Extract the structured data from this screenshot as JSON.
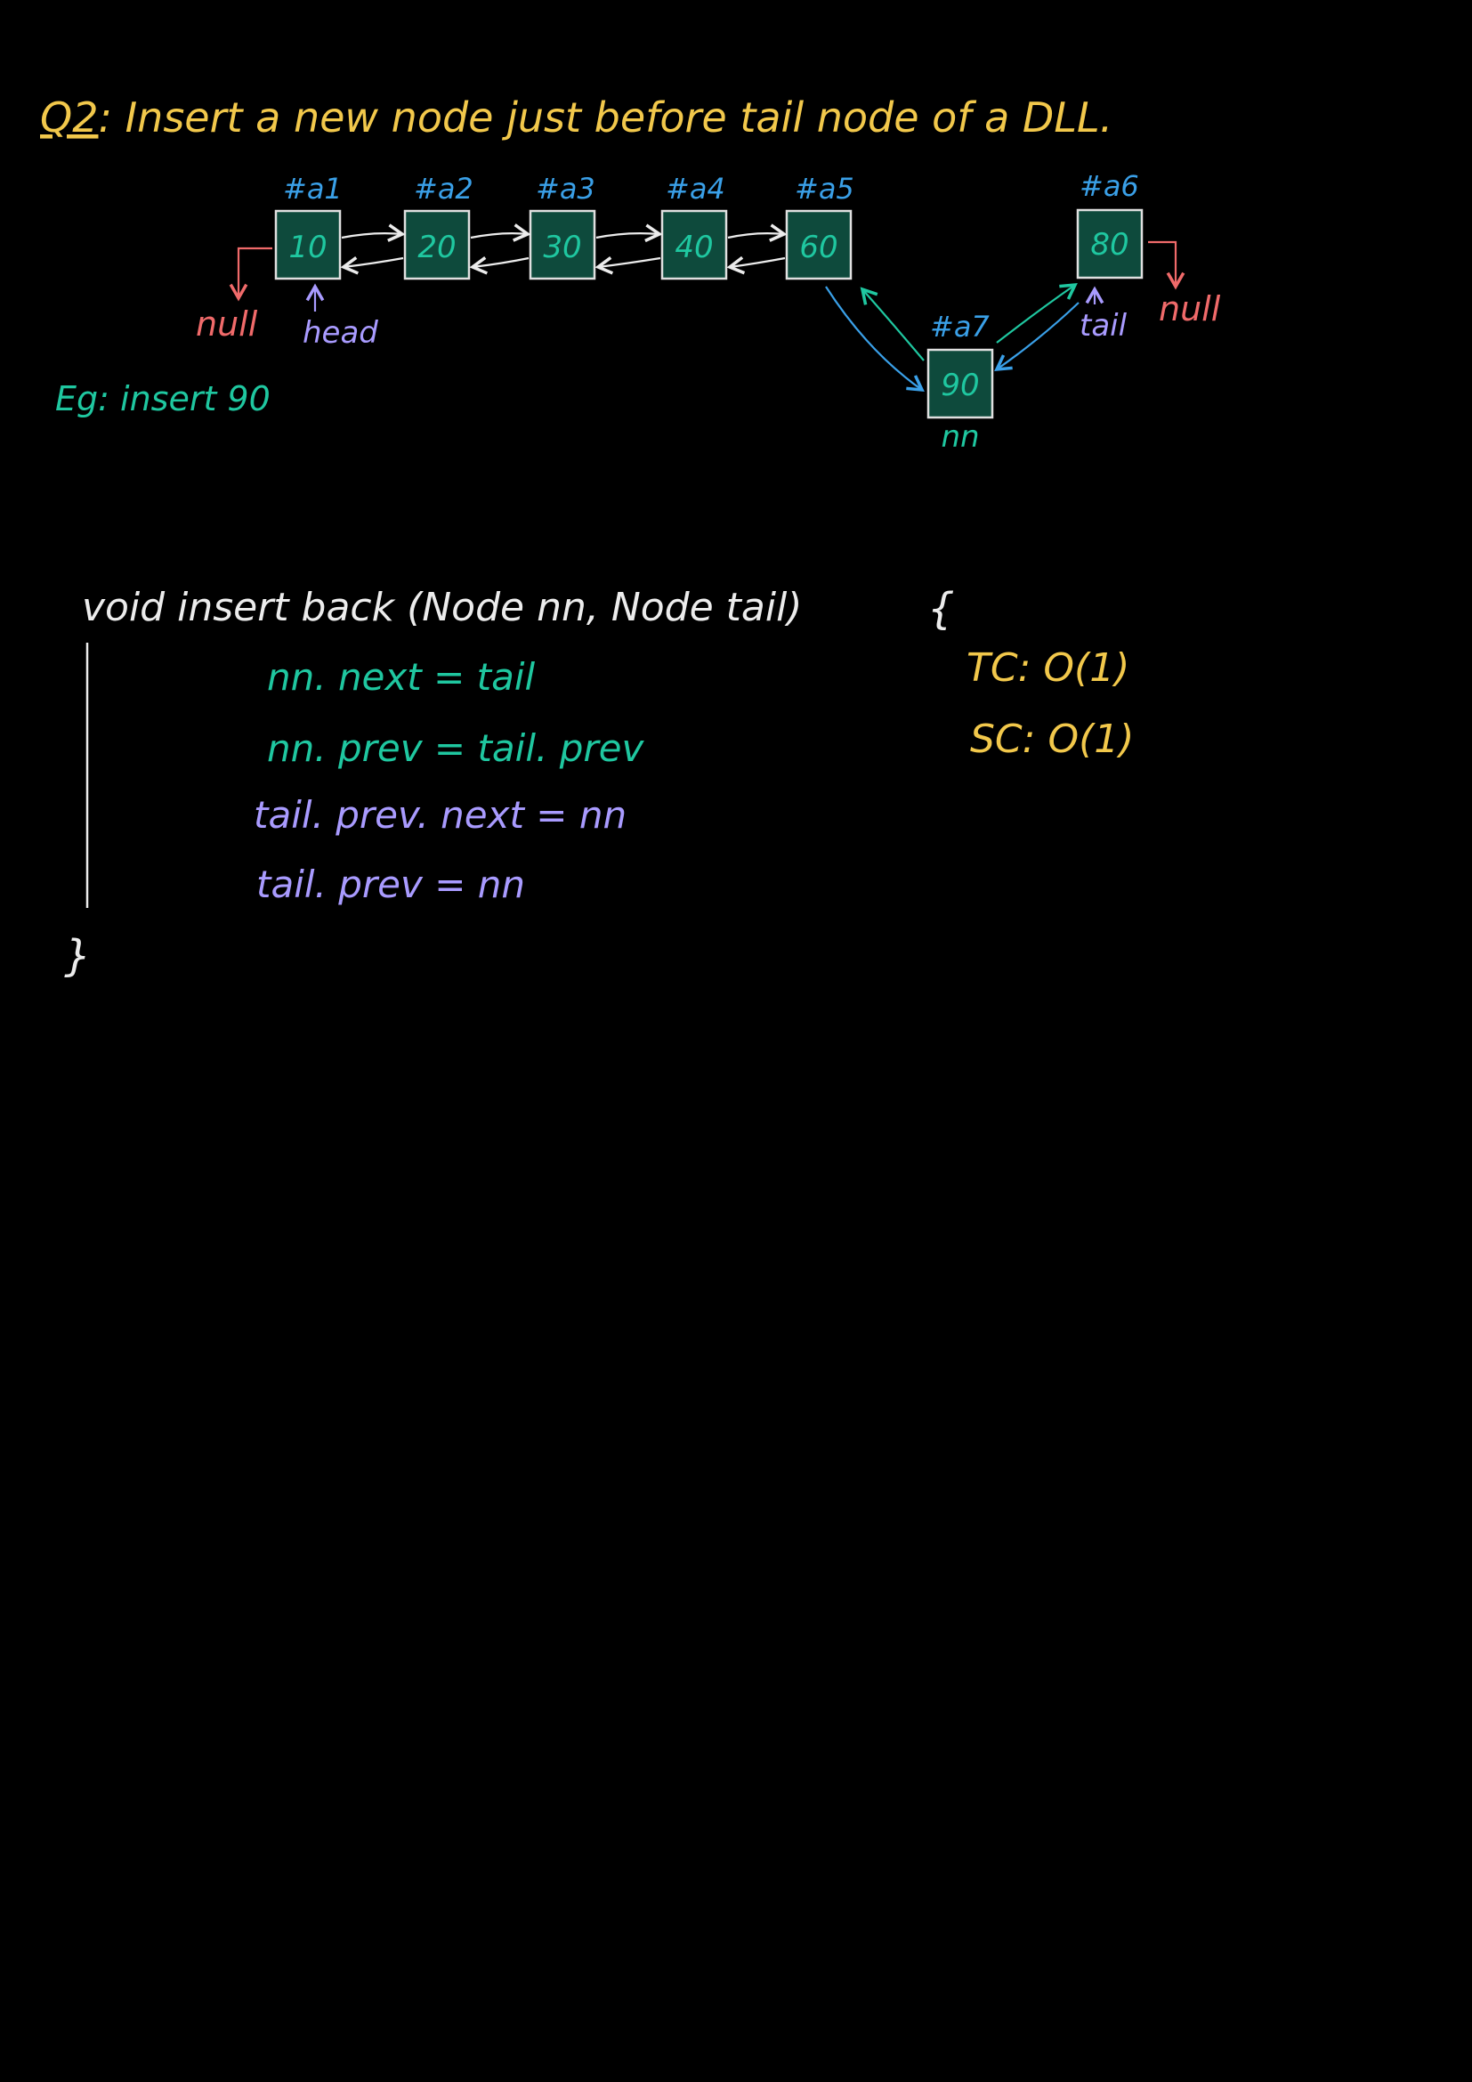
{
  "title": {
    "prefix": "Q2",
    "text": ": Insert a new node just before tail node of a DLL."
  },
  "example": "Eg: insert 90",
  "nodes": [
    {
      "addr": "#a1",
      "value": "10"
    },
    {
      "addr": "#a2",
      "value": "20"
    },
    {
      "addr": "#a3",
      "value": "30"
    },
    {
      "addr": "#a4",
      "value": "40"
    },
    {
      "addr": "#a5",
      "value": "60"
    },
    {
      "addr": "#a6",
      "value": "80"
    }
  ],
  "new_node": {
    "addr": "#a7",
    "value": "90",
    "label": "nn"
  },
  "labels": {
    "head": "head",
    "tail": "tail",
    "null_left": "null",
    "null_right": "null"
  },
  "code": {
    "signature": "void insert back (Node nn, Node tail)",
    "open_brace": "{",
    "close_brace": "}",
    "lines": [
      "nn. next = tail",
      "nn. prev = tail. prev",
      "tail. prev. next = nn",
      "tail. prev = nn"
    ]
  },
  "complexity": {
    "time": "TC: O(1)",
    "space": "SC: O(1)"
  },
  "colors": {
    "background": "#000000",
    "title": "#f2c84b",
    "address": "#3aa0e8",
    "node_fill": "#0e4a3c",
    "node_text": "#1fc7a0",
    "pointer_label": "#a99bff",
    "null": "#f06a6a",
    "white": "#ececec"
  }
}
